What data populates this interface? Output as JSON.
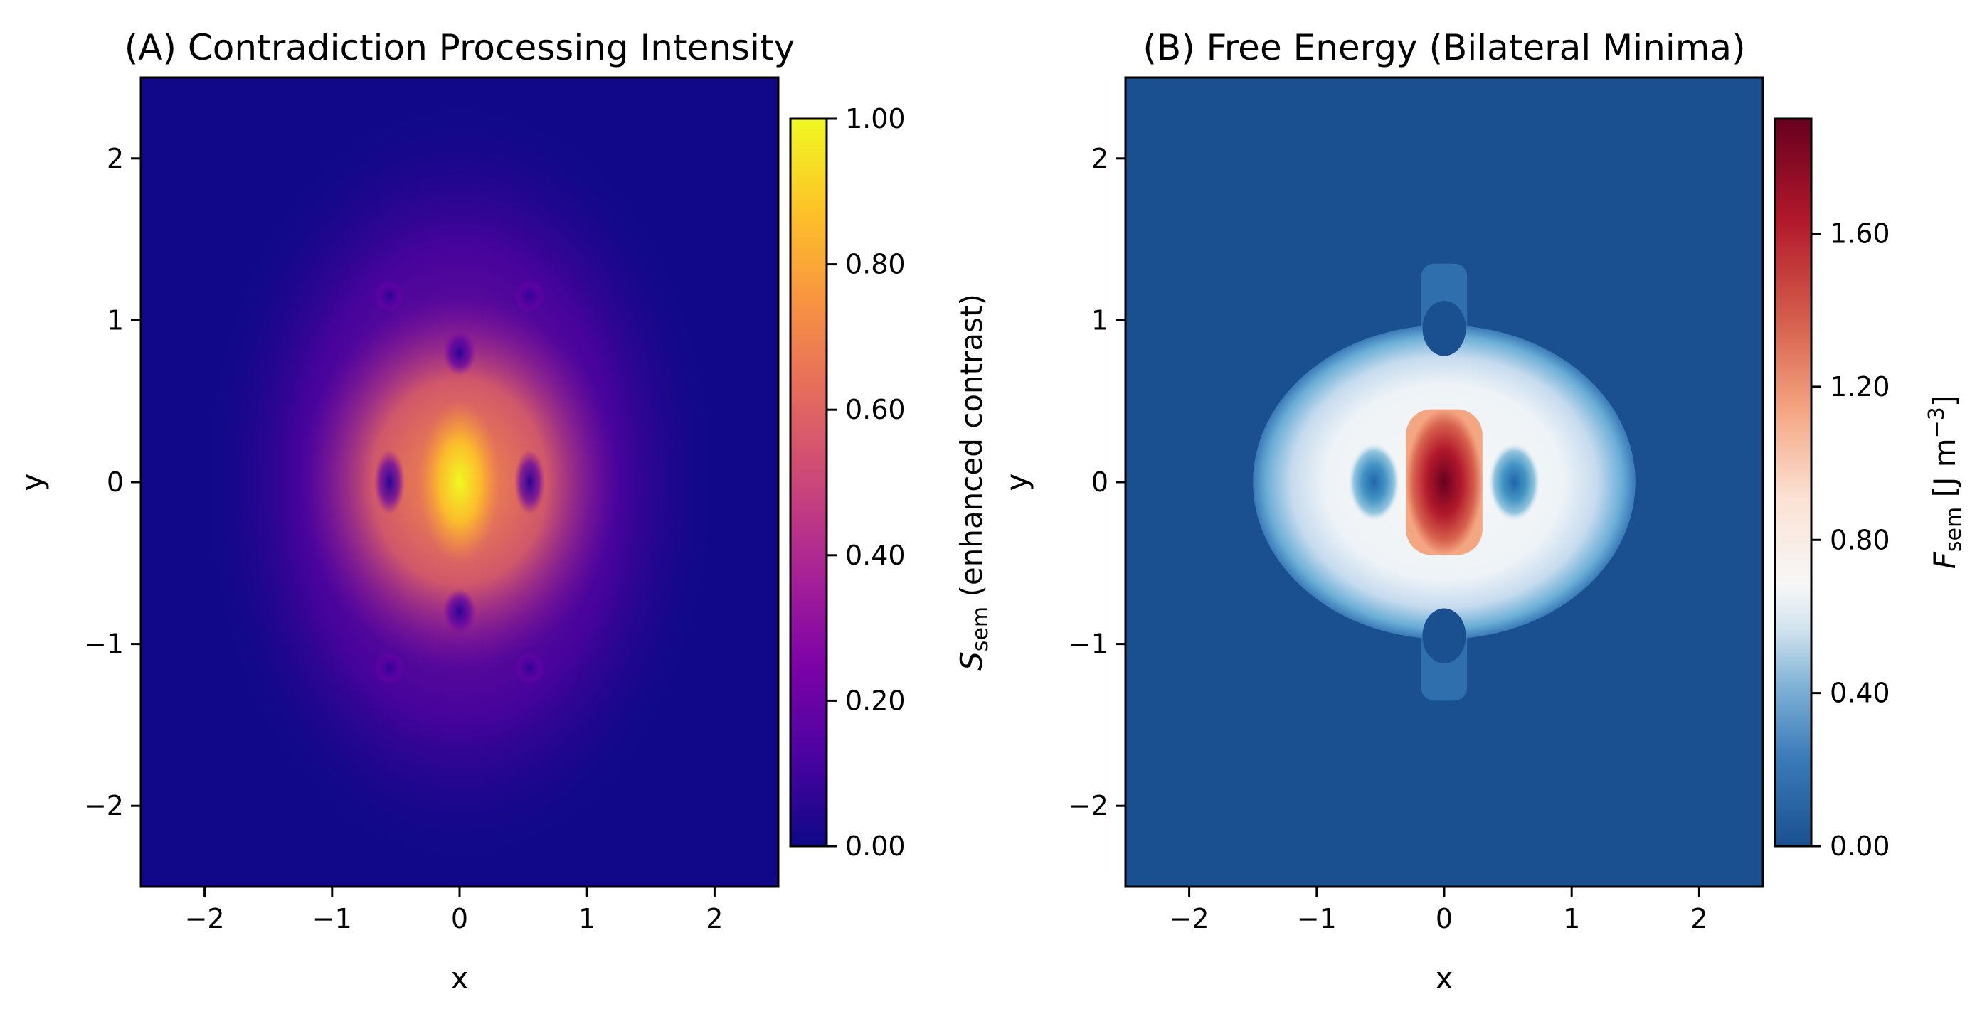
{
  "chart_data": [
    {
      "type": "heatmap",
      "title": "(A) Contradiction Processing Intensity",
      "xlabel": "x",
      "ylabel": "y",
      "xlim": [
        -2.5,
        2.5
      ],
      "ylim": [
        -2.5,
        2.5
      ],
      "xticks": [
        -2,
        -1,
        0,
        1,
        2
      ],
      "yticks": [
        -2,
        -1,
        0,
        1,
        2
      ],
      "xtick_labels": [
        "−2",
        "−1",
        "0",
        "1",
        "2"
      ],
      "ytick_labels": [
        "−2",
        "−1",
        "0",
        "1",
        "2"
      ],
      "colormap": "plasma",
      "colorbar": {
        "label_symbol": "S",
        "label_sub": "sem",
        "label_rest": " (enhanced contrast)",
        "range": [
          0.0,
          1.0
        ],
        "ticks": [
          0.0,
          0.2,
          0.4,
          0.6,
          0.8,
          1.0
        ],
        "tick_labels": [
          "0.00",
          "0.20",
          "0.40",
          "0.60",
          "0.80",
          "1.00"
        ]
      },
      "features": {
        "peak": {
          "x": 0,
          "y": 0,
          "value": 1.0
        },
        "bilateral_minima": [
          {
            "x": -0.55,
            "y": 0
          },
          {
            "x": 0.55,
            "y": 0
          }
        ],
        "vertical_minima": [
          {
            "x": 0,
            "y": 0.8
          },
          {
            "x": 0,
            "y": -0.8
          }
        ],
        "corner_minima": [
          {
            "x": -0.55,
            "y": 1.15
          },
          {
            "x": 0.55,
            "y": 1.15
          },
          {
            "x": -0.55,
            "y": -1.15
          },
          {
            "x": 0.55,
            "y": -1.15
          }
        ],
        "background_value": 0.05
      }
    },
    {
      "type": "heatmap",
      "title": "(B) Free Energy (Bilateral Minima)",
      "xlabel": "x",
      "ylabel": "y",
      "xlim": [
        -2.5,
        2.5
      ],
      "ylim": [
        -2.5,
        2.5
      ],
      "xticks": [
        -2,
        -1,
        0,
        1,
        2
      ],
      "yticks": [
        -2,
        -1,
        0,
        1,
        2
      ],
      "xtick_labels": [
        "−2",
        "−1",
        "0",
        "1",
        "2"
      ],
      "ytick_labels": [
        "−2",
        "−1",
        "0",
        "1",
        "2"
      ],
      "colormap": "RdBu_r",
      "colorbar": {
        "label_symbol": "F",
        "label_sub": "sem",
        "label_rest": " [J m",
        "label_sup": "−3",
        "label_end": "]",
        "range": [
          0.0,
          1.9
        ],
        "ticks": [
          0.0,
          0.4,
          0.8,
          1.2,
          1.6
        ],
        "tick_labels": [
          "0.00",
          "0.40",
          "0.80",
          "1.20",
          "1.60"
        ]
      },
      "features": {
        "peak": {
          "x": 0,
          "y": 0,
          "value": 1.9
        },
        "bilateral_minima": [
          {
            "x": -0.55,
            "y": 0
          },
          {
            "x": 0.55,
            "y": 0
          }
        ],
        "plateau_value": 0.6,
        "background_value": 0.0
      }
    }
  ]
}
